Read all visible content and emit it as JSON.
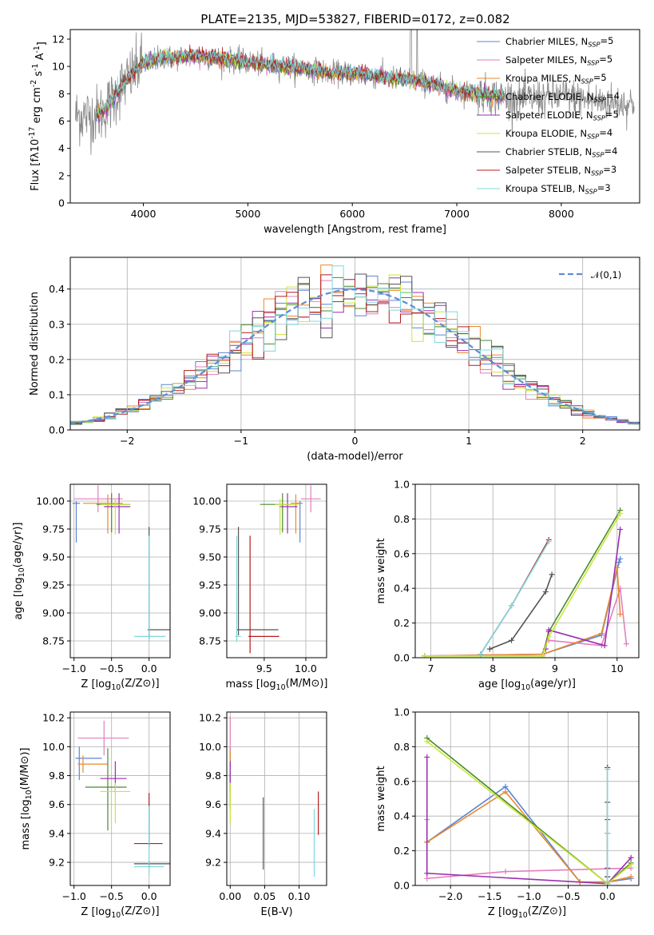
{
  "figure": {
    "title": "PLATE=2135, MJD=53827, FIBERID=0172, z=0.082"
  },
  "colors": {
    "Chabrier MILES": "#5b84d6",
    "Salpeter MILES": "#e27fbf",
    "Kroupa MILES": "#e88a2e",
    "Chabrier ELODIE": "#4a8a2c",
    "Salpeter ELODIE": "#9a2fb0",
    "Kroupa ELODIE": "#c9e63a",
    "Chabrier STELIB": "#555555",
    "Salpeter STELIB": "#b51c1c",
    "Kroupa STELIB": "#7fd8df",
    "data": "#8a8a8a",
    "normal": "#5b8ed6",
    "grid": "#b0b0b0"
  },
  "chart_data": [
    {
      "id": "spectrum",
      "type": "line",
      "title": "PLATE=2135, MJD=53827, FIBERID=0172, z=0.082",
      "xlabel": "wavelength [Angstrom, rest frame]",
      "ylabel": "Flux [f$_\\lambda$10$^{-17}$ erg cm$^{-2}$ s$^{-1}$ A$^{-1}$]",
      "xlim": [
        3300,
        8750
      ],
      "ylim": [
        0,
        12.7
      ],
      "xticks": [
        4000,
        5000,
        6000,
        7000,
        8000
      ],
      "yticks": [
        0,
        2,
        4,
        6,
        8,
        10,
        12
      ],
      "grid": false,
      "legend_position": "right",
      "legend": [
        {
          "name": "Chabrier MILES",
          "nssp": "5"
        },
        {
          "name": "Salpeter MILES",
          "nssp": "5"
        },
        {
          "name": "Kroupa MILES",
          "nssp": "5"
        },
        {
          "name": "Chabrier ELODIE",
          "nssp": "4"
        },
        {
          "name": "Salpeter ELODIE",
          "nssp": "5"
        },
        {
          "name": "Kroupa ELODIE",
          "nssp": "4"
        },
        {
          "name": "Chabrier STELIB",
          "nssp": "4"
        },
        {
          "name": "Salpeter STELIB",
          "nssp": "3"
        },
        {
          "name": "Kroupa STELIB",
          "nssp": "3"
        }
      ],
      "continuum": {
        "x": [
          3500,
          3600,
          3700,
          3800,
          3900,
          4000,
          4100,
          4200,
          4300,
          4400,
          4600,
          4800,
          5000,
          5200,
          5400,
          5600,
          5800,
          6000,
          6200,
          6400,
          6600,
          6800,
          7000,
          7200,
          7400,
          7600,
          7800,
          8000,
          8200,
          8400,
          8600
        ],
        "y": [
          6.4,
          6.6,
          7.5,
          8.6,
          9.5,
          10.3,
          10.5,
          10.7,
          10.6,
          10.8,
          10.7,
          10.5,
          10.3,
          10.1,
          10.0,
          9.8,
          9.5,
          9.5,
          9.3,
          9.1,
          9.0,
          8.6,
          8.2,
          8.0,
          7.8,
          7.6,
          7.7,
          7.8,
          7.6,
          7.4,
          7.3
        ]
      },
      "model_wavelength_range": [
        3550,
        7450
      ]
    },
    {
      "id": "residuals",
      "type": "step",
      "xlabel": "(data-model)/error",
      "ylabel": "Normed distribution",
      "xlim": [
        -2.5,
        2.5
      ],
      "ylim": [
        0,
        0.49
      ],
      "xticks": [
        -2,
        -1,
        0,
        1,
        2
      ],
      "yticks": [
        0.0,
        0.1,
        0.2,
        0.3,
        0.4
      ],
      "grid": true,
      "bin_width": 0.1,
      "legend": [
        {
          "name": "$\\mathcal{N}(0,1)$",
          "style": "dashed"
        }
      ],
      "legend_position": "top-right"
    },
    {
      "id": "age-vs-z",
      "type": "errorbar",
      "xlabel": "Z [log$_{10}$(Z/Z$_\\odot$)]",
      "ylabel": "age  [log$_{10}$(age/yr)]",
      "xlim": [
        -1.05,
        0.28
      ],
      "ylim": [
        8.6,
        10.15
      ],
      "xticks": [
        -1.0,
        -0.5,
        0.0
      ],
      "yticks": [
        8.75,
        9.0,
        9.25,
        9.5,
        9.75,
        10.0
      ],
      "grid": true,
      "points": [
        {
          "model": "Chabrier MILES",
          "x": -0.97,
          "xerr": [
            0.05,
            0.05
          ],
          "y": 9.98,
          "yerr": [
            0.35,
            0.02
          ]
        },
        {
          "model": "Salpeter MILES",
          "x": -0.68,
          "xerr": [
            0.32,
            0.33
          ],
          "y": 10.02,
          "yerr": [
            0.12,
            0.12
          ]
        },
        {
          "model": "Kroupa MILES",
          "x": -0.55,
          "xerr": [
            0.33,
            0.2
          ],
          "y": 9.98,
          "yerr": [
            0.27,
            0.08
          ]
        },
        {
          "model": "Chabrier ELODIE",
          "x": -0.5,
          "xerr": [
            0.2,
            0.25
          ],
          "y": 9.97,
          "yerr": [
            0.25,
            0.1
          ]
        },
        {
          "model": "Salpeter ELODIE",
          "x": -0.4,
          "xerr": [
            0.2,
            0.15
          ],
          "y": 9.95,
          "yerr": [
            0.24,
            0.12
          ]
        },
        {
          "model": "Kroupa ELODIE",
          "x": -0.45,
          "xerr": [
            0.2,
            0.2
          ],
          "y": 9.97,
          "yerr": [
            0.27,
            0.05
          ]
        },
        {
          "model": "Chabrier STELIB",
          "x": 0.0,
          "xerr": [
            0.02,
            0.28
          ],
          "y": 8.85,
          "yerr": [
            0.05,
            0.92
          ]
        },
        {
          "model": "Salpeter STELIB",
          "x": 0.0,
          "xerr": [
            0.02,
            0.02
          ],
          "y": 8.79,
          "yerr": [
            0.02,
            0.02
          ]
        },
        {
          "model": "Kroupa STELIB",
          "x": 0.0,
          "xerr": [
            0.2,
            0.22
          ],
          "y": 8.79,
          "yerr": [
            0.05,
            0.9
          ]
        }
      ]
    },
    {
      "id": "age-vs-mass",
      "type": "errorbar",
      "xlabel": "mass [log$_{10}$(M/M$_\\odot$)]",
      "xlim": [
        9.05,
        10.25
      ],
      "ylim": [
        8.6,
        10.15
      ],
      "xticks": [
        9.5,
        10.0
      ],
      "yticks": [
        8.75,
        9.0,
        9.25,
        9.5,
        9.75,
        10.0
      ],
      "grid": true,
      "points": [
        {
          "model": "Chabrier MILES",
          "x": 9.93,
          "xerr": [
            0.05,
            0.03
          ],
          "y": 9.98,
          "yerr": [
            0.35,
            0.02
          ]
        },
        {
          "model": "Salpeter MILES",
          "x": 10.06,
          "xerr": [
            0.12,
            0.12
          ],
          "y": 10.02,
          "yerr": [
            0.12,
            0.12
          ]
        },
        {
          "model": "Kroupa MILES",
          "x": 9.88,
          "xerr": [
            0.06,
            0.06
          ],
          "y": 9.98,
          "yerr": [
            0.27,
            0.08
          ]
        },
        {
          "model": "Chabrier ELODIE",
          "x": 9.72,
          "xerr": [
            0.27,
            0.1
          ],
          "y": 9.97,
          "yerr": [
            0.25,
            0.1
          ]
        },
        {
          "model": "Salpeter ELODIE",
          "x": 9.78,
          "xerr": [
            0.1,
            0.12
          ],
          "y": 9.95,
          "yerr": [
            0.24,
            0.12
          ]
        },
        {
          "model": "Kroupa ELODIE",
          "x": 9.69,
          "xerr": [
            0.06,
            0.22
          ],
          "y": 9.97,
          "yerr": [
            0.27,
            0.05
          ]
        },
        {
          "model": "Chabrier STELIB",
          "x": 9.19,
          "xerr": [
            0.02,
            0.48
          ],
          "y": 8.85,
          "yerr": [
            0.05,
            0.92
          ]
        },
        {
          "model": "Salpeter STELIB",
          "x": 9.33,
          "xerr": [
            0.02,
            0.35
          ],
          "y": 8.79,
          "yerr": [
            0.15,
            0.9
          ]
        },
        {
          "model": "Kroupa STELIB",
          "x": 9.17,
          "xerr": [
            0.02,
            0.05
          ],
          "y": 8.79,
          "yerr": [
            0.05,
            0.9
          ]
        }
      ]
    },
    {
      "id": "mass-weight-vs-age",
      "type": "line",
      "xlabel": "age  [log$_{10}$(age/yr)]",
      "ylabel": "mass weight",
      "xlim": [
        6.75,
        10.35
      ],
      "ylim": [
        0,
        1.0
      ],
      "xticks": [
        7,
        8,
        9,
        10
      ],
      "yticks": [
        0.0,
        0.2,
        0.4,
        0.6,
        0.8,
        1.0
      ],
      "grid": true,
      "series": [
        {
          "model": "Chabrier MILES",
          "x": [
            6.9,
            8.8,
            9.75,
            10.03,
            10.05
          ],
          "y": [
            0.01,
            0.02,
            0.13,
            0.55,
            0.57
          ]
        },
        {
          "model": "Salpeter MILES",
          "x": [
            8.9,
            9.75,
            10.05,
            10.15
          ],
          "y": [
            0.1,
            0.07,
            0.4,
            0.08
          ]
        },
        {
          "model": "Kroupa MILES",
          "x": [
            6.9,
            8.8,
            9.75,
            10.0,
            10.05
          ],
          "y": [
            0.01,
            0.02,
            0.14,
            0.52,
            0.25
          ]
        },
        {
          "model": "Chabrier ELODIE",
          "x": [
            6.9,
            8.8,
            8.9,
            10.05
          ],
          "y": [
            0.01,
            0.01,
            0.15,
            0.85
          ]
        },
        {
          "model": "Salpeter ELODIE",
          "x": [
            8.85,
            8.9,
            9.8,
            10.05
          ],
          "y": [
            0.05,
            0.16,
            0.07,
            0.74
          ]
        },
        {
          "model": "Kroupa ELODIE",
          "x": [
            6.9,
            8.8,
            8.9,
            10.05
          ],
          "y": [
            0.01,
            0.01,
            0.12,
            0.83
          ]
        },
        {
          "model": "Chabrier STELIB",
          "x": [
            7.95,
            8.3,
            8.85,
            8.95
          ],
          "y": [
            0.05,
            0.1,
            0.38,
            0.48
          ]
        },
        {
          "model": "Salpeter STELIB",
          "x": [
            7.8,
            8.3,
            8.9
          ],
          "y": [
            0.02,
            0.3,
            0.68
          ]
        },
        {
          "model": "Kroupa STELIB",
          "x": [
            7.8,
            8.3,
            8.9
          ],
          "y": [
            0.02,
            0.3,
            0.67
          ]
        }
      ]
    },
    {
      "id": "mass-vs-z",
      "type": "errorbar",
      "xlabel": "Z [log$_{10}$(Z/Z$_\\odot$)]",
      "ylabel": "mass [log$_{10}$(M/M$_\\odot$)]",
      "xlim": [
        -1.05,
        0.28
      ],
      "ylim": [
        9.04,
        10.24
      ],
      "xticks": [
        -1.0,
        -0.5,
        0.0
      ],
      "yticks": [
        9.2,
        9.4,
        9.6,
        9.8,
        10.0,
        10.2
      ],
      "grid": true,
      "points": [
        {
          "model": "Chabrier MILES",
          "x": -0.93,
          "xerr": [
            0.05,
            0.3
          ],
          "y": 9.92,
          "yerr": [
            0.15,
            0.08
          ]
        },
        {
          "model": "Salpeter MILES",
          "x": -0.6,
          "xerr": [
            0.35,
            0.33
          ],
          "y": 10.06,
          "yerr": [
            0.12,
            0.12
          ]
        },
        {
          "model": "Kroupa MILES",
          "x": -0.88,
          "xerr": [
            0.07,
            0.33
          ],
          "y": 9.88,
          "yerr": [
            0.06,
            0.06
          ]
        },
        {
          "model": "Chabrier ELODIE",
          "x": -0.55,
          "xerr": [
            0.3,
            0.25
          ],
          "y": 9.72,
          "yerr": [
            0.3,
            0.27
          ]
        },
        {
          "model": "Salpeter ELODIE",
          "x": -0.45,
          "xerr": [
            0.2,
            0.15
          ],
          "y": 9.78,
          "yerr": [
            0.1,
            0.12
          ]
        },
        {
          "model": "Kroupa ELODIE",
          "x": -0.45,
          "xerr": [
            0.2,
            0.2
          ],
          "y": 9.69,
          "yerr": [
            0.22,
            0.06
          ]
        },
        {
          "model": "Chabrier STELIB",
          "x": 0.0,
          "xerr": [
            0.2,
            0.28
          ],
          "y": 9.19,
          "yerr": [
            0.02,
            0.02
          ]
        },
        {
          "model": "Salpeter STELIB",
          "x": 0.0,
          "xerr": [
            0.2,
            0.18
          ],
          "y": 9.33,
          "yerr": [
            0.02,
            0.35
          ]
        },
        {
          "model": "Kroupa STELIB",
          "x": 0.0,
          "xerr": [
            0.2,
            0.2
          ],
          "y": 9.17,
          "yerr": [
            0.05,
            0.42
          ]
        }
      ]
    },
    {
      "id": "mass-vs-ebv",
      "type": "errorbar",
      "xlabel": "E(B-V)",
      "xlim": [
        -0.005,
        0.14
      ],
      "ylim": [
        9.04,
        10.24
      ],
      "xticks": [
        0.0,
        0.05,
        0.1
      ],
      "yticks": [
        9.2,
        9.4,
        9.6,
        9.8,
        10.0,
        10.2
      ],
      "grid": true,
      "points": [
        {
          "model": "Chabrier MILES",
          "x": 0.0,
          "y": 9.92,
          "yerr": [
            0.15,
            0.08
          ]
        },
        {
          "model": "Salpeter MILES",
          "x": 0.0,
          "y": 10.06,
          "yerr": [
            0.12,
            0.15
          ]
        },
        {
          "model": "Kroupa MILES",
          "x": 0.0,
          "y": 9.88,
          "yerr": [
            0.06,
            0.1
          ]
        },
        {
          "model": "Chabrier ELODIE",
          "x": 0.0,
          "y": 9.72,
          "yerr": [
            0.15,
            0.1
          ]
        },
        {
          "model": "Salpeter ELODIE",
          "x": 0.0,
          "y": 9.78,
          "yerr": [
            0.1,
            0.12
          ]
        },
        {
          "model": "Kroupa ELODIE",
          "x": 0.0,
          "y": 9.69,
          "yerr": [
            0.22,
            0.06
          ]
        },
        {
          "model": "Chabrier STELIB",
          "x": 0.048,
          "y": 9.4,
          "yerr": [
            0.25,
            0.25
          ]
        },
        {
          "model": "Salpeter STELIB",
          "x": 0.128,
          "y": 9.47,
          "yerr": [
            0.08,
            0.22
          ]
        },
        {
          "model": "Kroupa STELIB",
          "x": 0.122,
          "y": 9.4,
          "yerr": [
            0.3,
            0.17
          ]
        }
      ]
    },
    {
      "id": "mass-weight-vs-z",
      "type": "line",
      "xlabel": "Z [log$_{10}$(Z/Z$_\\odot$)]",
      "ylabel": "mass weight",
      "xlim": [
        -2.45,
        0.4
      ],
      "ylim": [
        0,
        1.0
      ],
      "xticks": [
        -2.0,
        -1.5,
        -1.0,
        -0.5,
        0.0
      ],
      "yticks": [
        0.0,
        0.2,
        0.4,
        0.6,
        0.8,
        1.0
      ],
      "grid": true,
      "series": [
        {
          "model": "Chabrier MILES",
          "x": [
            -2.3,
            -1.3,
            -0.35,
            0.0,
            0.3
          ],
          "y": [
            0.25,
            0.57,
            0.02,
            0.02,
            0.04
          ]
        },
        {
          "model": "Salpeter MILES",
          "x": [
            -2.3,
            -2.3,
            -1.3,
            0.3
          ],
          "y": [
            0.38,
            0.04,
            0.08,
            0.1
          ]
        },
        {
          "model": "Kroupa MILES",
          "x": [
            -2.3,
            -1.3,
            -0.35,
            0.0,
            0.3
          ],
          "y": [
            0.25,
            0.54,
            0.02,
            0.02,
            0.05
          ]
        },
        {
          "model": "Chabrier ELODIE",
          "x": [
            -2.3,
            0.0,
            0.3
          ],
          "y": [
            0.85,
            0.01,
            0.13
          ]
        },
        {
          "model": "Salpeter ELODIE",
          "x": [
            -2.3,
            -2.3,
            0.0,
            0.3
          ],
          "y": [
            0.74,
            0.07,
            0.01,
            0.16
          ]
        },
        {
          "model": "Kroupa ELODIE",
          "x": [
            -2.3,
            0.0,
            0.3
          ],
          "y": [
            0.83,
            0.01,
            0.12
          ]
        },
        {
          "model": "Chabrier STELIB",
          "x": [
            0.0,
            0.0,
            0.0,
            0.0,
            0.0
          ],
          "y": [
            0.05,
            0.1,
            0.38,
            0.48,
            0.05
          ]
        },
        {
          "model": "Salpeter STELIB",
          "x": [
            0.0,
            0.0,
            0.0
          ],
          "y": [
            0.02,
            0.3,
            0.68
          ]
        },
        {
          "model": "Kroupa STELIB",
          "x": [
            0.0,
            0.0,
            0.0
          ],
          "y": [
            0.02,
            0.3,
            0.67
          ]
        }
      ]
    }
  ]
}
